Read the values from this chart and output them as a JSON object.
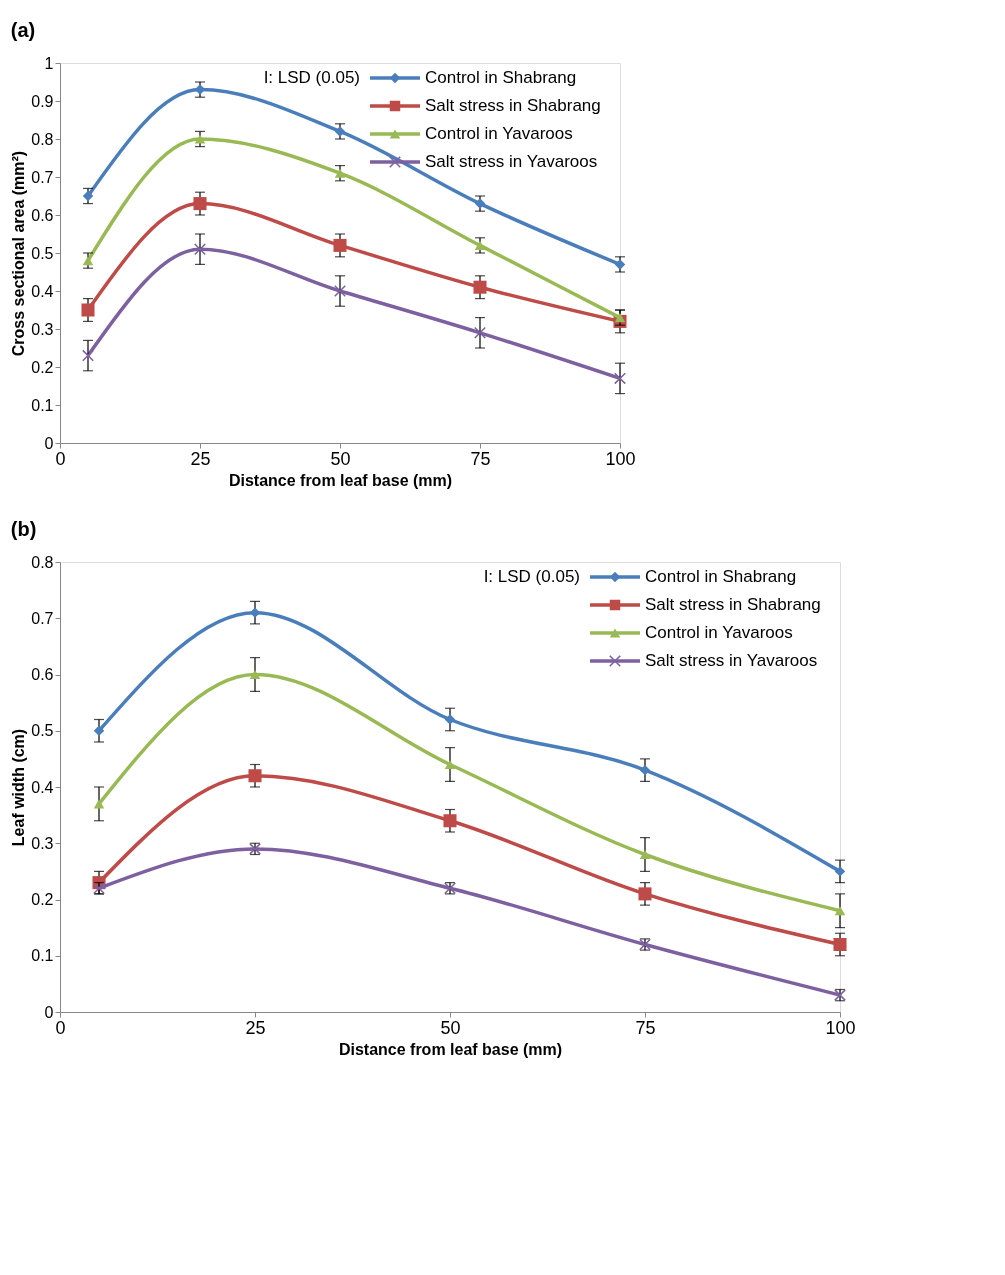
{
  "chart_data": [
    {
      "type": "line",
      "title": "(a)",
      "annotations": [
        "I:  LSD (0.05)"
      ],
      "xlabel": "Distance from leaf base (mm)",
      "ylabel": "Cross sectional area (mm²)",
      "x": [
        5,
        25,
        50,
        75,
        100
      ],
      "xlim": [
        0,
        100
      ],
      "xticks": [
        0,
        25,
        50,
        75,
        100
      ],
      "ylim": [
        0,
        1
      ],
      "yticks": [
        0,
        0.1,
        0.2,
        0.3,
        0.4,
        0.5,
        0.6,
        0.7,
        0.8,
        0.9,
        1
      ],
      "grid": false,
      "legend": "top right",
      "series": [
        {
          "name": "Control in Shabrang",
          "color": "#4a7ebb",
          "marker": "diamond",
          "values": [
            0.65,
            0.93,
            0.82,
            0.63,
            0.47
          ],
          "errors": [
            0.02,
            0.02,
            0.02,
            0.02,
            0.02
          ]
        },
        {
          "name": "Salt stress in Shabrang",
          "color": "#be4b48",
          "marker": "square",
          "values": [
            0.35,
            0.63,
            0.52,
            0.41,
            0.32
          ],
          "errors": [
            0.03,
            0.03,
            0.03,
            0.03,
            0.03
          ]
        },
        {
          "name": "Control in Yavaroos",
          "color": "#98b954",
          "marker": "triangle",
          "values": [
            0.48,
            0.8,
            0.71,
            0.52,
            0.33
          ],
          "errors": [
            0.02,
            0.02,
            0.02,
            0.02,
            0.02
          ]
        },
        {
          "name": "Salt stress in Yavaroos",
          "color": "#7d60a0",
          "marker": "cross",
          "values": [
            0.23,
            0.51,
            0.4,
            0.29,
            0.17
          ],
          "errors": [
            0.04,
            0.04,
            0.04,
            0.04,
            0.04
          ]
        }
      ]
    },
    {
      "type": "line",
      "title": "(b)",
      "annotations": [
        "I:  LSD (0.05)"
      ],
      "xlabel": "Distance  from leaf base  (mm)",
      "ylabel": "Leaf width (cm)",
      "x": [
        5,
        25,
        50,
        75,
        100
      ],
      "xlim": [
        0,
        100
      ],
      "xticks": [
        0,
        25,
        50,
        75,
        100
      ],
      "ylim": [
        0,
        0.8
      ],
      "yticks": [
        0,
        0.1,
        0.2,
        0.3,
        0.4,
        0.5,
        0.6,
        0.7,
        0.8
      ],
      "grid": false,
      "legend": "top right",
      "series": [
        {
          "name": "Control in Shabrang",
          "color": "#4a7ebb",
          "marker": "diamond",
          "values": [
            0.5,
            0.71,
            0.52,
            0.43,
            0.25
          ],
          "errors": [
            0.02,
            0.02,
            0.02,
            0.02,
            0.02
          ]
        },
        {
          "name": "Salt stress in Shabrang",
          "color": "#be4b48",
          "marker": "square",
          "values": [
            0.23,
            0.42,
            0.34,
            0.21,
            0.12
          ],
          "errors": [
            0.02,
            0.02,
            0.02,
            0.02,
            0.02
          ]
        },
        {
          "name": "Control in Yavaroos",
          "color": "#98b954",
          "marker": "triangle",
          "values": [
            0.37,
            0.6,
            0.44,
            0.28,
            0.18
          ],
          "errors": [
            0.03,
            0.03,
            0.03,
            0.03,
            0.03
          ]
        },
        {
          "name": "Salt stress in Yavaroos",
          "color": "#7d60a0",
          "marker": "cross",
          "values": [
            0.22,
            0.29,
            0.22,
            0.12,
            0.03
          ],
          "errors": [
            0.01,
            0.01,
            0.01,
            0.01,
            0.01
          ]
        }
      ]
    }
  ]
}
